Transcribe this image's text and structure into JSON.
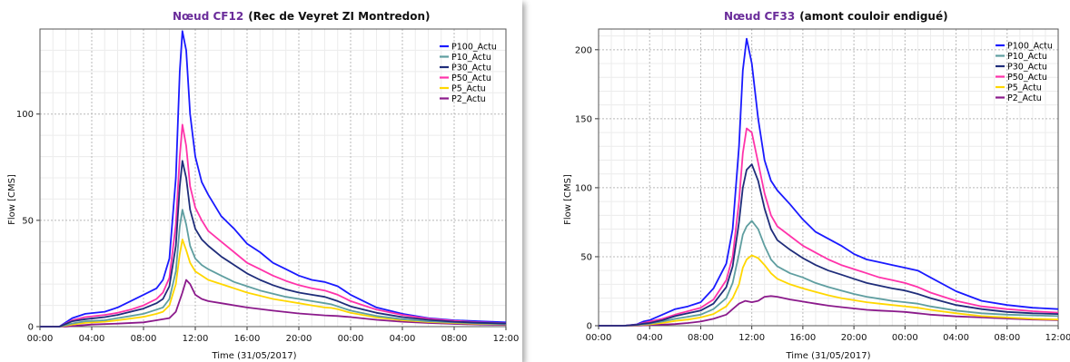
{
  "chart_data": [
    {
      "type": "line",
      "title_node": "Nœud CF12",
      "title_rest": "(Rec de Veyret ZI Montredon)",
      "xlabel": "Time (31/05/2017)",
      "ylabel": "Flow [CMS]",
      "x_ticks": [
        "00:00",
        "04:00",
        "08:00",
        "12:00",
        "16:00",
        "20:00",
        "00:00",
        "04:00",
        "08:00",
        "12:00"
      ],
      "x_range_hours": [
        0,
        36
      ],
      "y_ticks": [
        0,
        50,
        100
      ],
      "ylim": [
        0,
        140
      ],
      "legend_position": "top-right",
      "series": [
        {
          "name": "P100_Actu",
          "color": "#1a1aff",
          "x": [
            0,
            1.5,
            2.5,
            3.5,
            5,
            6,
            7,
            8,
            9,
            9.5,
            10,
            10.5,
            10.8,
            11,
            11.3,
            11.6,
            12,
            12.5,
            13,
            14,
            15,
            16,
            17,
            18,
            19,
            20,
            21,
            22,
            22.5,
            23,
            24,
            26,
            28,
            30,
            32,
            34,
            36
          ],
          "y": [
            0,
            0,
            4,
            6,
            7,
            9,
            12,
            15,
            18,
            22,
            32,
            70,
            120,
            139,
            130,
            100,
            80,
            68,
            62,
            52,
            46,
            39,
            35,
            30,
            27,
            24,
            22,
            21,
            20,
            19,
            15,
            9,
            6,
            4,
            3,
            2.5,
            2
          ]
        },
        {
          "name": "P10_Actu",
          "color": "#5f9ea0",
          "x": [
            0,
            1.5,
            2.5,
            3.5,
            5,
            6,
            7,
            8,
            9,
            9.5,
            10,
            10.5,
            10.8,
            11,
            11.3,
            11.6,
            12,
            12.5,
            13,
            14,
            15,
            16,
            17,
            18,
            19,
            20,
            21,
            22,
            22.5,
            23,
            24,
            26,
            28,
            30,
            32,
            34,
            36
          ],
          "y": [
            0,
            0,
            1.5,
            2.5,
            3,
            4,
            5,
            6,
            8,
            9,
            13,
            26,
            47,
            55,
            48,
            38,
            32,
            29,
            27,
            24,
            21,
            19,
            17,
            15.5,
            14,
            13,
            12,
            11,
            10.5,
            9.5,
            7.5,
            5,
            3.5,
            2.5,
            2,
            1.5,
            1.2
          ]
        },
        {
          "name": "P30_Actu",
          "color": "#1f2d7a",
          "x": [
            0,
            1.5,
            2.5,
            3.5,
            5,
            6,
            7,
            8,
            9,
            9.5,
            10,
            10.5,
            10.8,
            11,
            11.3,
            11.6,
            12,
            12.5,
            13,
            14,
            15,
            16,
            17,
            18,
            19,
            20,
            21,
            22,
            22.5,
            23,
            24,
            26,
            28,
            30,
            32,
            34,
            36
          ],
          "y": [
            0,
            0,
            2.5,
            3.5,
            4.5,
            5.5,
            7,
            8.5,
            11,
            13,
            19,
            38,
            66,
            78,
            70,
            55,
            46,
            41,
            38,
            33,
            29,
            25,
            22,
            19.5,
            17.5,
            16,
            15,
            14,
            13,
            12,
            9.5,
            6.5,
            4.5,
            3.2,
            2.3,
            1.8,
            1.5
          ]
        },
        {
          "name": "P50_Actu",
          "color": "#ff33aa",
          "x": [
            0,
            1.5,
            2.5,
            3.5,
            5,
            6,
            7,
            8,
            9,
            9.5,
            10,
            10.5,
            10.8,
            11,
            11.3,
            11.6,
            12,
            12.5,
            13,
            14,
            15,
            16,
            17,
            18,
            19,
            20,
            21,
            22,
            22.5,
            23,
            24,
            26,
            28,
            30,
            32,
            34,
            36
          ],
          "y": [
            0,
            0,
            3,
            4.5,
            5.5,
            6.5,
            8,
            10,
            13,
            16,
            23,
            48,
            80,
            95,
            85,
            66,
            56,
            50,
            45,
            40,
            35,
            30,
            27,
            24,
            21.5,
            19.5,
            18,
            17,
            16,
            15,
            12,
            8,
            5.5,
            3.7,
            2.7,
            2,
            1.6
          ]
        },
        {
          "name": "P5_Actu",
          "color": "#ffd700",
          "x": [
            0,
            1.5,
            2.5,
            3.5,
            5,
            6,
            7,
            8,
            9,
            9.5,
            10,
            10.5,
            10.8,
            11,
            11.3,
            11.6,
            12,
            12.5,
            13,
            14,
            15,
            16,
            17,
            18,
            19,
            20,
            21,
            22,
            22.5,
            23,
            24,
            26,
            28,
            30,
            32,
            34,
            36
          ],
          "y": [
            0,
            0,
            1,
            1.8,
            2.3,
            3,
            3.8,
            4.6,
            6,
            7,
            10,
            20,
            34,
            41,
            36,
            30,
            26,
            24,
            22,
            20,
            18,
            16,
            14.5,
            13,
            12,
            11,
            10,
            9,
            8.8,
            8.2,
            6.5,
            4.3,
            3,
            2.2,
            1.7,
            1.3,
            1.1
          ]
        },
        {
          "name": "P2_Actu",
          "color": "#8b1a8b",
          "x": [
            0,
            2,
            3,
            4,
            6,
            8,
            9,
            10,
            10.5,
            11,
            11.3,
            11.6,
            12,
            12.5,
            13,
            14,
            16,
            18,
            20,
            22,
            23,
            24,
            26,
            28,
            30,
            32,
            34,
            36
          ],
          "y": [
            0,
            0,
            0.5,
            1,
            1.4,
            2,
            3,
            4,
            7,
            16,
            22,
            20,
            15,
            13,
            12,
            11,
            9,
            7.5,
            6.2,
            5.3,
            5,
            4.5,
            3.2,
            2.3,
            1.7,
            1.3,
            1,
            0.8
          ]
        }
      ]
    },
    {
      "type": "line",
      "title_node": "Nœud CF33",
      "title_rest": "(amont couloir endigué)",
      "xlabel": "Time (31/05/2017)",
      "ylabel": "Flow [CMS]",
      "x_ticks": [
        "00:00",
        "04:00",
        "08:00",
        "12:00",
        "16:00",
        "20:00",
        "00:00",
        "04:00",
        "08:00",
        "12:00"
      ],
      "x_range_hours": [
        0,
        36
      ],
      "y_ticks": [
        0,
        50,
        100,
        150,
        200
      ],
      "ylim": [
        0,
        215
      ],
      "legend_position": "top-right",
      "series": [
        {
          "name": "P100_Actu",
          "color": "#1a1aff",
          "x": [
            0,
            2,
            3,
            3.5,
            4,
            5,
            6,
            7,
            8,
            9,
            10,
            10.5,
            11,
            11.3,
            11.6,
            12,
            12.5,
            13,
            13.5,
            14,
            15,
            16,
            17,
            18,
            19,
            20,
            21,
            22,
            23,
            24,
            25,
            26,
            28,
            30,
            32,
            34,
            36
          ],
          "y": [
            0,
            0,
            1,
            3,
            4,
            8,
            12,
            14,
            17,
            27,
            45,
            70,
            130,
            185,
            208,
            190,
            150,
            120,
            105,
            98,
            88,
            77,
            68,
            63,
            58,
            52,
            48,
            46,
            44,
            42,
            40,
            35,
            25,
            18,
            15,
            13,
            12
          ]
        },
        {
          "name": "P10_Actu",
          "color": "#5f9ea0",
          "x": [
            0,
            2,
            3,
            3.5,
            4,
            5,
            6,
            7,
            8,
            9,
            10,
            10.5,
            11,
            11.3,
            11.6,
            12,
            12.5,
            13,
            13.5,
            14,
            15,
            16,
            17,
            18,
            19,
            20,
            21,
            22,
            23,
            24,
            25,
            26,
            28,
            30,
            32,
            34,
            36
          ],
          "y": [
            0,
            0,
            0.5,
            1,
            1.5,
            3,
            5,
            6.5,
            8,
            12,
            20,
            31,
            52,
            66,
            72,
            76,
            70,
            58,
            48,
            43,
            38,
            35,
            31,
            28,
            25.5,
            23,
            21,
            19.5,
            18,
            17,
            16,
            14,
            11,
            9,
            8,
            7.5,
            7
          ]
        },
        {
          "name": "P30_Actu",
          "color": "#1f2d7a",
          "x": [
            0,
            2,
            3,
            3.5,
            4,
            5,
            6,
            7,
            8,
            9,
            10,
            10.5,
            11,
            11.3,
            11.6,
            12,
            12.5,
            13,
            13.5,
            14,
            15,
            16,
            17,
            18,
            19,
            20,
            21,
            22,
            23,
            24,
            25,
            26,
            28,
            30,
            32,
            34,
            36
          ],
          "y": [
            0,
            0,
            0.7,
            1.5,
            2,
            4,
            7,
            9,
            11,
            16,
            28,
            43,
            75,
            100,
            113,
            117,
            105,
            85,
            70,
            62,
            55,
            49,
            44,
            40,
            37,
            34,
            31,
            29,
            27,
            25.5,
            23,
            20,
            15,
            12,
            10,
            9,
            8.5
          ]
        },
        {
          "name": "P50_Actu",
          "color": "#ff33aa",
          "x": [
            0,
            2,
            3,
            3.5,
            4,
            5,
            6,
            7,
            8,
            9,
            10,
            10.5,
            11,
            11.3,
            11.6,
            12,
            12.5,
            13,
            13.5,
            14,
            15,
            16,
            17,
            18,
            19,
            20,
            21,
            22,
            23,
            24,
            25,
            26,
            28,
            30,
            32,
            34,
            36
          ],
          "y": [
            0,
            0,
            0.8,
            2,
            3,
            5,
            8,
            10.5,
            13,
            19,
            33,
            50,
            90,
            125,
            143,
            140,
            118,
            96,
            80,
            72,
            65,
            58,
            53,
            48,
            44,
            41,
            38,
            35,
            33,
            31,
            28,
            24,
            18,
            14,
            12,
            10.5,
            9.5
          ]
        },
        {
          "name": "P5_Actu",
          "color": "#ffd700",
          "x": [
            0,
            2,
            3,
            3.5,
            4,
            5,
            6,
            7,
            8,
            9,
            10,
            10.5,
            11,
            11.3,
            11.6,
            12,
            12.5,
            13,
            13.5,
            14,
            15,
            16,
            17,
            18,
            19,
            20,
            21,
            22,
            23,
            24,
            25,
            26,
            28,
            30,
            32,
            34,
            36
          ],
          "y": [
            0,
            0,
            0.3,
            0.8,
            1,
            2,
            3.5,
            4.5,
            6,
            8.5,
            14,
            20,
            30,
            42,
            48,
            51,
            49,
            44,
            38,
            34,
            30,
            27,
            24.5,
            22,
            20,
            18.5,
            17,
            16,
            15,
            14,
            13,
            11.5,
            9,
            7,
            6,
            5,
            4.5
          ]
        },
        {
          "name": "P2_Actu",
          "color": "#8b1a8b",
          "x": [
            0,
            3,
            4,
            5,
            6,
            7,
            8,
            9,
            10,
            10.5,
            11,
            11.5,
            12,
            12.5,
            13,
            13.5,
            14,
            15,
            16,
            17,
            18,
            19,
            20,
            21,
            22,
            23,
            24,
            25,
            26,
            28,
            30,
            32,
            34,
            36
          ],
          "y": [
            0,
            0,
            0.5,
            0.8,
            1.2,
            2,
            3,
            5,
            8,
            12,
            16,
            18,
            17,
            18,
            21,
            21.5,
            21,
            19,
            17.5,
            16,
            14.5,
            13.5,
            12.5,
            11.5,
            11,
            10.5,
            10,
            9,
            8,
            6.8,
            6,
            5.2,
            4.5,
            4
          ]
        }
      ]
    }
  ]
}
